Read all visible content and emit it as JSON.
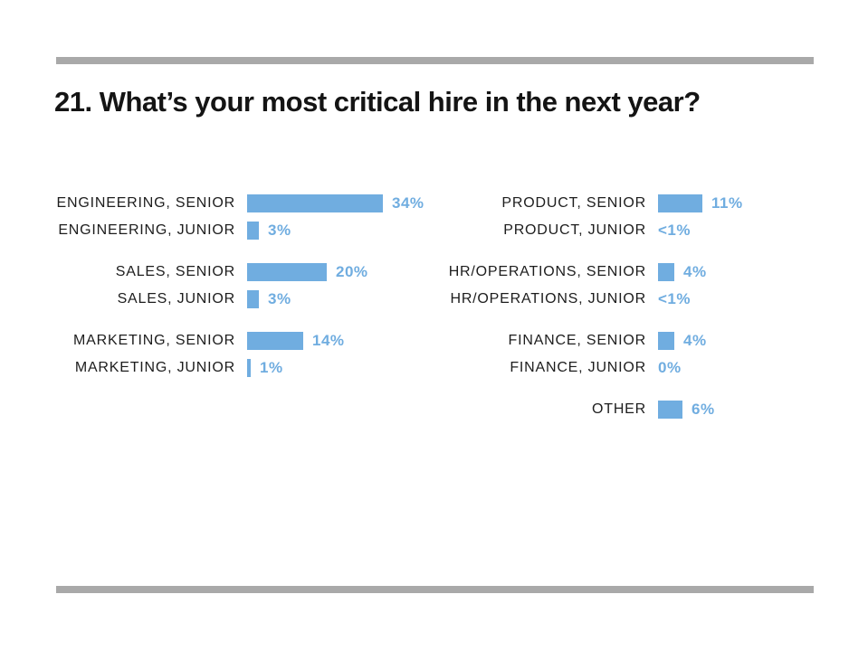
{
  "page": {
    "title": "21. What’s your most critical hire in the next year?",
    "accent_color": "#70ade0",
    "rule_color": "#a9a9a9"
  },
  "chart_data": {
    "type": "bar",
    "orientation": "horizontal",
    "title": "21. What’s your most critical hire in the next year?",
    "unit": "%",
    "axis": "none",
    "grid": false,
    "legend": "none",
    "value_scale_hint": "bar length proportional to percent, ~4.4px per point, max 34%",
    "columns": [
      {
        "name": "left",
        "groups": [
          {
            "rows": [
              {
                "label": "ENGINEERING, SENIOR",
                "value": 34,
                "display": "34%"
              },
              {
                "label": "ENGINEERING, JUNIOR",
                "value": 3,
                "display": "3%"
              }
            ]
          },
          {
            "rows": [
              {
                "label": "SALES, SENIOR",
                "value": 20,
                "display": "20%"
              },
              {
                "label": "SALES, JUNIOR",
                "value": 3,
                "display": "3%"
              }
            ]
          },
          {
            "rows": [
              {
                "label": "MARKETING, SENIOR",
                "value": 14,
                "display": "14%"
              },
              {
                "label": "MARKETING, JUNIOR",
                "value": 1,
                "display": "1%"
              }
            ]
          }
        ]
      },
      {
        "name": "right",
        "groups": [
          {
            "rows": [
              {
                "label": "PRODUCT, SENIOR",
                "value": 11,
                "display": "11%"
              },
              {
                "label": "PRODUCT, JUNIOR",
                "value": 0,
                "display": "<1%"
              }
            ]
          },
          {
            "rows": [
              {
                "label": "HR/OPERATIONS, SENIOR",
                "value": 4,
                "display": "4%"
              },
              {
                "label": "HR/OPERATIONS, JUNIOR",
                "value": 0,
                "display": "<1%"
              }
            ]
          },
          {
            "rows": [
              {
                "label": "FINANCE, SENIOR",
                "value": 4,
                "display": "4%"
              },
              {
                "label": "FINANCE, JUNIOR",
                "value": 0,
                "display": "0%"
              }
            ]
          },
          {
            "rows": [
              {
                "label": "OTHER",
                "value": 6,
                "display": "6%"
              }
            ]
          }
        ]
      }
    ]
  }
}
